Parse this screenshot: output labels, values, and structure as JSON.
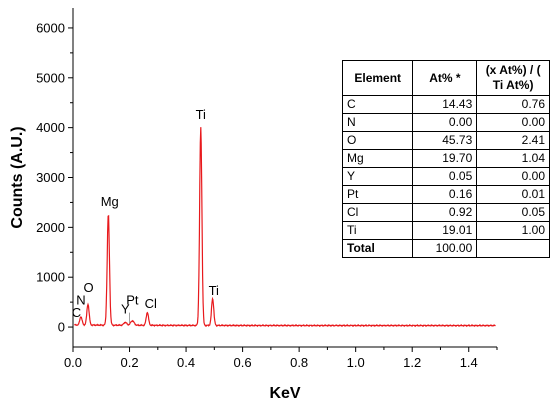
{
  "chart_data": {
    "type": "line",
    "xlabel": "KeV",
    "ylabel": "Counts (A.U.)",
    "xlim": [
      0,
      1.5
    ],
    "ylim": [
      -400,
      6400
    ],
    "xticks": [
      "0.0",
      "0.2",
      "0.4",
      "0.6",
      "0.8",
      "1.0",
      "1.2",
      "1.4"
    ],
    "xtick_values": [
      0,
      0.2,
      0.4,
      0.6,
      0.8,
      1.0,
      1.2,
      1.4
    ],
    "yticks": [
      "0",
      "1000",
      "2000",
      "3000",
      "4000",
      "5000",
      "6000"
    ],
    "ytick_values": [
      0,
      1000,
      2000,
      3000,
      4000,
      5000,
      6000
    ],
    "grid": false,
    "line_color": "#e8191c",
    "baseline": 30,
    "peaks": [
      {
        "x": 0.028,
        "height": 170,
        "width": 0.004
      },
      {
        "x": 0.053,
        "height": 420,
        "width": 0.004
      },
      {
        "x": 0.125,
        "height": 2230,
        "width": 0.004
      },
      {
        "x": 0.185,
        "height": 60,
        "width": 0.005
      },
      {
        "x": 0.21,
        "height": 90,
        "width": 0.006
      },
      {
        "x": 0.263,
        "height": 260,
        "width": 0.004
      },
      {
        "x": 0.452,
        "height": 3980,
        "width": 0.004
      },
      {
        "x": 0.494,
        "height": 540,
        "width": 0.004
      }
    ],
    "annotations": [
      {
        "text": "C",
        "x": 0.012,
        "y": 200
      },
      {
        "text": "N",
        "x": 0.028,
        "y": 450
      },
      {
        "text": "O",
        "x": 0.055,
        "y": 700
      },
      {
        "text": "Mg",
        "x": 0.13,
        "y": 2430
      },
      {
        "text": "Pt",
        "x": 0.21,
        "y": 450
      },
      {
        "text": "Y",
        "x": 0.185,
        "y": 270
      },
      {
        "text": "Cl",
        "x": 0.275,
        "y": 380
      },
      {
        "text": "Ti",
        "x": 0.452,
        "y": 4170
      },
      {
        "text": "Ti",
        "x": 0.498,
        "y": 640
      }
    ],
    "table": {
      "headers": [
        "Element",
        "At% *",
        "(x At%) / ( Ti At%)"
      ],
      "rows": [
        [
          "C",
          "14.43",
          "0.76"
        ],
        [
          "N",
          "0.00",
          "0.00"
        ],
        [
          "O",
          "45.73",
          "2.41"
        ],
        [
          "Mg",
          "19.70",
          "1.04"
        ],
        [
          "Y",
          "0.05",
          "0.00"
        ],
        [
          "Pt",
          "0.16",
          "0.01"
        ],
        [
          "Cl",
          "0.92",
          "0.05"
        ],
        [
          "Ti",
          "19.01",
          "1.00"
        ],
        [
          "Total",
          "100.00",
          ""
        ]
      ]
    }
  }
}
